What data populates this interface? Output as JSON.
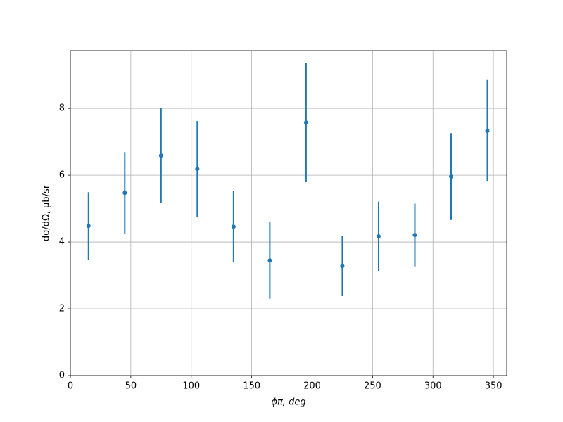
{
  "chart_data": {
    "type": "errorbar",
    "xlabel": "ϕπ, deg",
    "ylabel": "dσ/dΩ, μb/sr",
    "x": [
      15,
      45,
      75,
      105,
      135,
      165,
      195,
      225,
      255,
      285,
      315,
      345
    ],
    "values": [
      4.48,
      5.47,
      6.59,
      6.19,
      4.46,
      3.45,
      7.58,
      3.28,
      4.17,
      4.21,
      5.96,
      7.33
    ],
    "errors": [
      1.01,
      1.22,
      1.42,
      1.43,
      1.06,
      1.15,
      1.79,
      0.9,
      1.04,
      0.94,
      1.3,
      1.52
    ],
    "color": "#1f77b4",
    "xlim": [
      0,
      361
    ],
    "xticks": [
      0,
      50,
      100,
      150,
      200,
      250,
      300,
      350
    ],
    "ylim": [
      0,
      9.73
    ],
    "yticks": [
      0,
      2,
      4,
      6,
      8
    ],
    "grid": true
  }
}
